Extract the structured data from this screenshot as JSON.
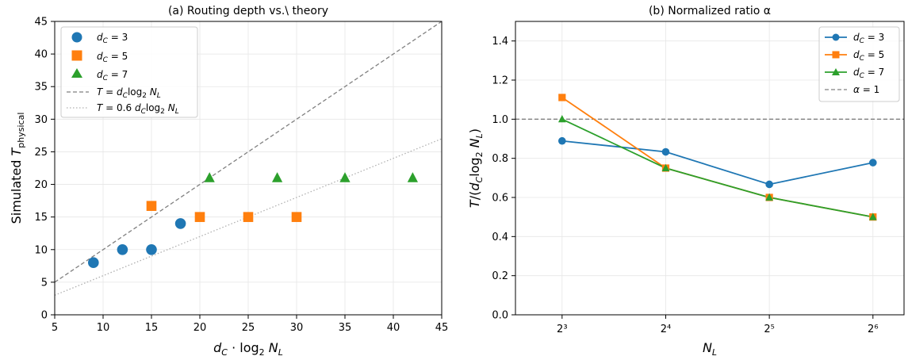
{
  "chart_data": [
    {
      "type": "scatter",
      "title": "(a) Routing depth vs.\\ theory",
      "xlabel": "d_C · log₂ N_L",
      "ylabel": "Simulated T_physical",
      "xlim": [
        5,
        45
      ],
      "ylim": [
        0,
        45
      ],
      "xticks": [
        5,
        10,
        15,
        20,
        25,
        30,
        35,
        40,
        45
      ],
      "yticks": [
        0,
        5,
        10,
        15,
        20,
        25,
        30,
        35,
        40,
        45
      ],
      "grid": true,
      "legend_position": "top-left",
      "series": [
        {
          "name": "d_C = 3",
          "marker": "circle",
          "color": "#1f77b4",
          "points": [
            [
              9,
              8
            ],
            [
              12,
              10
            ],
            [
              15,
              10
            ],
            [
              18,
              14
            ]
          ]
        },
        {
          "name": "d_C = 5",
          "marker": "square",
          "color": "#ff7f0e",
          "points": [
            [
              15,
              16.7
            ],
            [
              20,
              15
            ],
            [
              25,
              15
            ],
            [
              30,
              15
            ]
          ]
        },
        {
          "name": "d_C = 7",
          "marker": "triangle",
          "color": "#2ca02c",
          "points": [
            [
              21,
              21
            ],
            [
              28,
              21
            ],
            [
              35,
              21
            ],
            [
              42,
              21
            ]
          ]
        }
      ],
      "reference_lines": [
        {
          "name": "T = d_C log₂ N_L",
          "slope": 1.0,
          "style": "dashed",
          "color": "#808080"
        },
        {
          "name": "T = 0.6 d_C log₂ N_L",
          "slope": 0.6,
          "style": "dotted",
          "color": "#b0b0b0"
        }
      ]
    },
    {
      "type": "line",
      "title": "(b) Normalized ratio α",
      "xlabel": "N_L",
      "ylabel": "T/(d_C log₂ N_L)",
      "x_tick_labels": [
        "2³",
        "2⁴",
        "2⁵",
        "2⁶"
      ],
      "x": [
        8,
        16,
        32,
        64
      ],
      "x_scale": "log2",
      "ylim": [
        0.0,
        1.5
      ],
      "yticks": [
        "0.0",
        "0.2",
        "0.4",
        "0.6",
        "0.8",
        "1.0",
        "1.2",
        "1.4"
      ],
      "grid": true,
      "legend_position": "top-right",
      "series": [
        {
          "name": "d_C = 3",
          "marker": "circle",
          "color": "#1f77b4",
          "values": [
            0.889,
            0.833,
            0.667,
            0.778
          ]
        },
        {
          "name": "d_C = 5",
          "marker": "square",
          "color": "#ff7f0e",
          "values": [
            1.111,
            0.75,
            0.6,
            0.5
          ]
        },
        {
          "name": "d_C = 7",
          "marker": "triangle",
          "color": "#2ca02c",
          "values": [
            1.0,
            0.75,
            0.6,
            0.5
          ]
        }
      ],
      "reference_lines": [
        {
          "name": "α = 1",
          "y": 1.0,
          "style": "dashed",
          "color": "#808080"
        }
      ]
    }
  ]
}
